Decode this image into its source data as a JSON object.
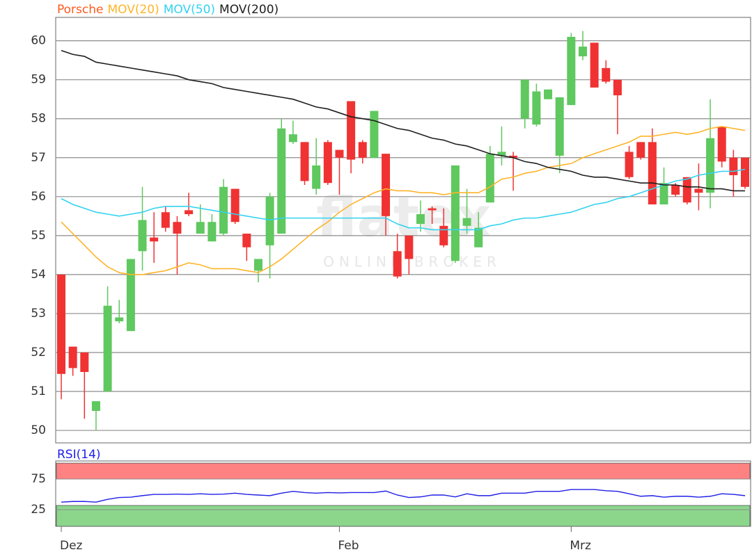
{
  "chart_data": [
    {
      "type": "candlestick",
      "name": "Porsche",
      "name_color": "#ff5a1e",
      "color_up": "#5fc85f",
      "color_down": "#f03232",
      "watermark": "flatex",
      "watermark_subtitle": "ONLINE BROKER",
      "categories": [
        "Dez",
        null,
        null,
        null,
        null,
        null,
        null,
        null,
        null,
        null,
        null,
        null,
        null,
        null,
        null,
        null,
        null,
        null,
        null,
        null,
        null,
        null,
        null,
        null,
        "Feb",
        null,
        null,
        null,
        null,
        null,
        null,
        null,
        null,
        null,
        null,
        null,
        null,
        null,
        null,
        null,
        null,
        null,
        null,
        null,
        "Mrz",
        null,
        null,
        null,
        null,
        null,
        null,
        null,
        null,
        null,
        null,
        null,
        null,
        null,
        null,
        null
      ],
      "open": [
        54.0,
        52.15,
        52.0,
        50.5,
        51.0,
        52.8,
        52.55,
        54.6,
        54.95,
        55.6,
        55.35,
        55.65,
        55.05,
        54.85,
        55.05,
        56.2,
        55.05,
        54.1,
        54.75,
        55.05,
        57.4,
        57.4,
        56.2,
        57.4,
        57.2,
        58.45,
        57.4,
        57.0,
        57.1,
        54.6,
        55.0,
        55.3,
        55.7,
        55.25,
        54.35,
        55.25,
        54.7,
        55.85,
        57.05,
        57.05,
        58.0,
        57.85,
        58.5,
        57.05,
        58.35,
        59.6,
        59.95,
        59.3,
        59.0,
        57.15,
        57.4,
        57.4,
        55.8,
        56.3,
        56.5,
        56.2,
        56.1,
        57.8,
        57.0,
        57.0
      ],
      "high": [
        54.0,
        52.15,
        52.0,
        50.75,
        53.7,
        53.35,
        54.4,
        56.25,
        55.6,
        55.75,
        55.5,
        56.1,
        55.8,
        55.55,
        56.45,
        56.2,
        55.05,
        54.4,
        56.1,
        58.0,
        57.95,
        57.4,
        57.5,
        57.45,
        57.2,
        58.45,
        57.45,
        58.2,
        57.1,
        55.05,
        55.0,
        55.9,
        55.75,
        55.7,
        56.8,
        56.2,
        55.6,
        57.3,
        57.8,
        57.15,
        59.0,
        58.9,
        58.75,
        58.55,
        60.2,
        60.25,
        59.95,
        59.5,
        59.0,
        57.3,
        57.4,
        57.75,
        56.75,
        56.35,
        56.5,
        56.85,
        58.5,
        57.8,
        57.2,
        57.0
      ],
      "low": [
        50.8,
        51.4,
        50.3,
        50.0,
        51.0,
        52.75,
        52.55,
        54.1,
        54.3,
        55.1,
        54.0,
        55.5,
        55.05,
        54.85,
        55.0,
        55.3,
        54.35,
        53.8,
        53.9,
        55.05,
        57.35,
        56.3,
        56.05,
        56.3,
        56.05,
        56.6,
        56.85,
        57.0,
        55.0,
        53.9,
        54.0,
        55.1,
        55.3,
        54.7,
        54.3,
        55.05,
        54.7,
        55.85,
        56.8,
        56.15,
        57.75,
        57.8,
        58.5,
        56.6,
        58.35,
        59.5,
        58.8,
        58.9,
        57.6,
        56.45,
        56.95,
        55.8,
        55.8,
        56.0,
        55.8,
        55.65,
        55.7,
        56.75,
        56.0,
        56.2
      ],
      "close": [
        51.45,
        51.6,
        51.5,
        50.75,
        53.2,
        52.9,
        54.4,
        55.4,
        54.85,
        55.2,
        55.05,
        55.55,
        55.35,
        55.35,
        56.25,
        55.35,
        54.7,
        54.4,
        56.0,
        57.75,
        57.6,
        56.4,
        56.8,
        56.35,
        57.0,
        56.95,
        57.0,
        58.2,
        55.5,
        53.95,
        54.4,
        55.55,
        55.65,
        54.75,
        56.8,
        55.45,
        55.2,
        57.1,
        57.15,
        57.0,
        59.0,
        58.7,
        58.75,
        58.55,
        60.1,
        59.85,
        58.8,
        58.95,
        58.6,
        56.5,
        57.0,
        55.8,
        56.35,
        56.05,
        55.85,
        56.1,
        57.5,
        56.9,
        56.55,
        56.25
      ],
      "series": [
        {
          "name": "MOV(20)",
          "color": "#ffb428",
          "values": [
            55.35,
            55.05,
            54.75,
            54.45,
            54.2,
            54.05,
            54.0,
            54.0,
            54.05,
            54.1,
            54.2,
            54.3,
            54.25,
            54.15,
            54.15,
            54.15,
            54.1,
            54.05,
            54.2,
            54.4,
            54.65,
            54.9,
            55.15,
            55.35,
            55.6,
            55.8,
            55.95,
            56.1,
            56.2,
            56.15,
            56.15,
            56.1,
            56.1,
            56.05,
            56.1,
            56.1,
            56.1,
            56.25,
            56.45,
            56.5,
            56.6,
            56.65,
            56.75,
            56.8,
            56.85,
            57.0,
            57.1,
            57.2,
            57.3,
            57.4,
            57.55,
            57.55,
            57.6,
            57.65,
            57.6,
            57.65,
            57.75,
            57.8,
            57.75,
            57.7
          ]
        },
        {
          "name": "MOV(50)",
          "color": "#32d2f0",
          "values": [
            55.95,
            55.8,
            55.7,
            55.6,
            55.55,
            55.5,
            55.55,
            55.6,
            55.7,
            55.75,
            55.75,
            55.75,
            55.7,
            55.65,
            55.6,
            55.55,
            55.5,
            55.45,
            55.4,
            55.45,
            55.45,
            55.45,
            55.45,
            55.45,
            55.45,
            55.45,
            55.45,
            55.45,
            55.45,
            55.3,
            55.2,
            55.2,
            55.15,
            55.15,
            55.15,
            55.15,
            55.15,
            55.25,
            55.3,
            55.4,
            55.45,
            55.45,
            55.5,
            55.55,
            55.6,
            55.7,
            55.8,
            55.85,
            55.95,
            56.0,
            56.1,
            56.2,
            56.3,
            56.4,
            56.45,
            56.55,
            56.6,
            56.65,
            56.65,
            56.7
          ]
        },
        {
          "name": "MOV(200)",
          "color": "#1e1e1e",
          "values": [
            59.75,
            59.65,
            59.6,
            59.45,
            59.4,
            59.35,
            59.3,
            59.25,
            59.2,
            59.15,
            59.1,
            59.0,
            58.95,
            58.9,
            58.8,
            58.75,
            58.7,
            58.65,
            58.6,
            58.55,
            58.5,
            58.4,
            58.3,
            58.25,
            58.15,
            58.05,
            58.0,
            57.95,
            57.85,
            57.75,
            57.7,
            57.6,
            57.5,
            57.45,
            57.35,
            57.3,
            57.2,
            57.1,
            57.05,
            57.0,
            56.9,
            56.85,
            56.75,
            56.7,
            56.65,
            56.55,
            56.5,
            56.5,
            56.45,
            56.4,
            56.35,
            56.35,
            56.3,
            56.3,
            56.25,
            56.25,
            56.2,
            56.2,
            56.15,
            56.15
          ]
        }
      ],
      "ylim": [
        49.68,
        60.6
      ],
      "yticks": [
        50,
        51,
        52,
        53,
        54,
        55,
        56,
        57,
        58,
        59,
        60
      ],
      "grid": true
    },
    {
      "type": "line",
      "series": [
        {
          "name": "RSI(14)",
          "color": "#1e1ee6",
          "values": [
            37.5,
            38.5,
            38.5,
            37.5,
            42,
            45,
            45.5,
            48,
            50,
            50,
            50.5,
            50,
            51,
            50,
            50.5,
            52,
            50,
            49,
            48,
            52,
            55,
            53,
            52,
            53,
            52.5,
            53,
            53,
            53,
            55.5,
            49,
            45,
            46,
            49,
            49,
            46,
            51,
            48,
            48,
            52,
            52,
            52,
            55,
            55,
            55,
            58,
            58,
            58,
            56,
            55,
            51,
            47,
            48,
            45.5,
            47,
            47,
            45.5,
            47,
            51,
            50,
            48
          ]
        }
      ],
      "bands": [
        {
          "from": 75,
          "to": 101,
          "color": "#ff8282"
        },
        {
          "from": -2,
          "to": 32,
          "color": "#8cd68c"
        }
      ],
      "ylim": [
        -2,
        104.5
      ],
      "yticks": [
        25,
        75
      ],
      "grid": true
    }
  ]
}
